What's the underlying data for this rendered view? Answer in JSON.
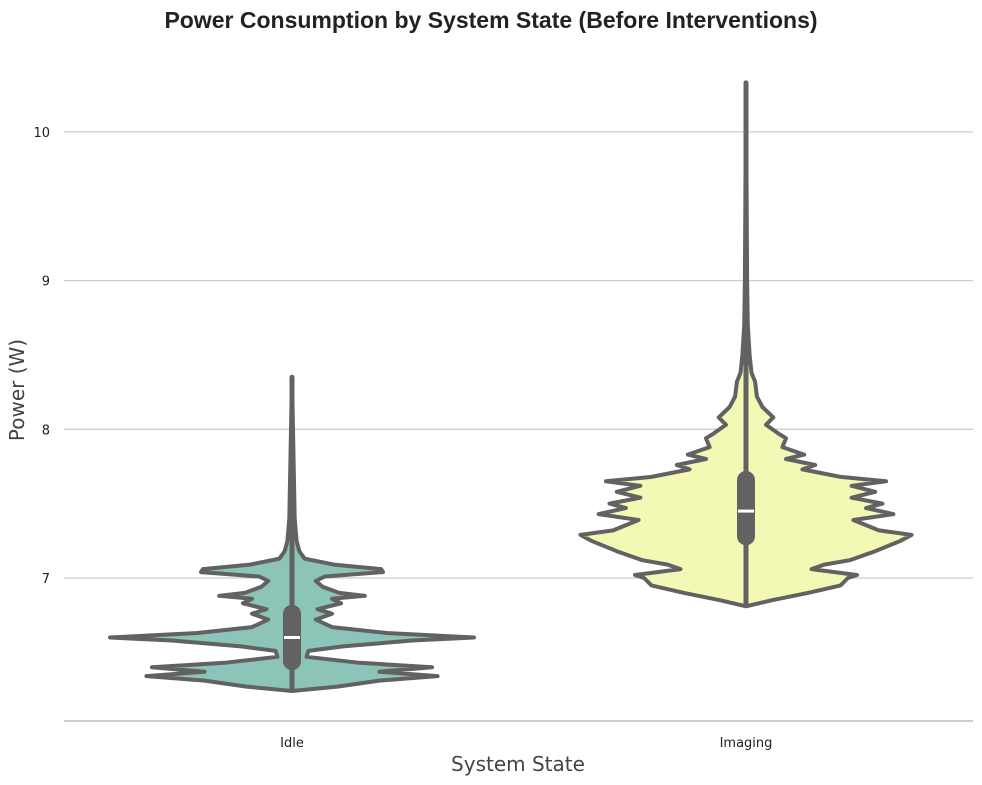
{
  "chart_data": {
    "type": "violin",
    "title": "Power Consumption by System State (Before Interventions)",
    "xlabel": "System State",
    "ylabel": "Power (W)",
    "ylim": [
      6.05,
      10.45
    ],
    "yticks": [
      7,
      8,
      9,
      10
    ],
    "grid": "horizontal",
    "categories": [
      "Idle",
      "Imaging"
    ],
    "colors": {
      "Idle": "#8dc4b8",
      "Imaging": "#f3f8b4",
      "outline": "#626262"
    },
    "series": [
      {
        "category": "Idle",
        "min": 6.25,
        "q1": 6.38,
        "median": 6.6,
        "q3": 6.82,
        "max": 8.35,
        "density_profile": [
          [
            6.24,
            0.0
          ],
          [
            6.27,
            0.25
          ],
          [
            6.31,
            0.48
          ],
          [
            6.34,
            0.8
          ],
          [
            6.37,
            0.48
          ],
          [
            6.4,
            0.77
          ],
          [
            6.43,
            0.37
          ],
          [
            6.47,
            0.08
          ],
          [
            6.51,
            0.09
          ],
          [
            6.54,
            0.28
          ],
          [
            6.58,
            0.66
          ],
          [
            6.6,
            1.0
          ],
          [
            6.63,
            0.52
          ],
          [
            6.67,
            0.22
          ],
          [
            6.72,
            0.13
          ],
          [
            6.76,
            0.22
          ],
          [
            6.79,
            0.14
          ],
          [
            6.83,
            0.27
          ],
          [
            6.86,
            0.22
          ],
          [
            6.88,
            0.4
          ],
          [
            6.9,
            0.26
          ],
          [
            6.94,
            0.17
          ],
          [
            6.98,
            0.13
          ],
          [
            7.01,
            0.18
          ],
          [
            7.04,
            0.5
          ],
          [
            7.06,
            0.49
          ],
          [
            7.09,
            0.23
          ],
          [
            7.13,
            0.07
          ],
          [
            7.18,
            0.04
          ],
          [
            7.25,
            0.025
          ],
          [
            7.4,
            0.015
          ],
          [
            8.35,
            0.0
          ]
        ]
      },
      {
        "category": "Imaging",
        "min": 6.82,
        "q1": 7.22,
        "median": 7.45,
        "q3": 7.72,
        "max": 10.33,
        "density_profile": [
          [
            6.81,
            0.0
          ],
          [
            6.85,
            0.14
          ],
          [
            6.9,
            0.34
          ],
          [
            6.95,
            0.52
          ],
          [
            7.0,
            0.56
          ],
          [
            7.02,
            0.61
          ],
          [
            7.06,
            0.36
          ],
          [
            7.09,
            0.43
          ],
          [
            7.12,
            0.57
          ],
          [
            7.18,
            0.71
          ],
          [
            7.25,
            0.85
          ],
          [
            7.29,
            0.91
          ],
          [
            7.32,
            0.73
          ],
          [
            7.39,
            0.59
          ],
          [
            7.43,
            0.81
          ],
          [
            7.47,
            0.66
          ],
          [
            7.5,
            0.75
          ],
          [
            7.54,
            0.58
          ],
          [
            7.58,
            0.71
          ],
          [
            7.62,
            0.58
          ],
          [
            7.65,
            0.77
          ],
          [
            7.68,
            0.52
          ],
          [
            7.73,
            0.31
          ],
          [
            7.76,
            0.38
          ],
          [
            7.8,
            0.22
          ],
          [
            7.83,
            0.32
          ],
          [
            7.88,
            0.2
          ],
          [
            7.94,
            0.22
          ],
          [
            7.97,
            0.18
          ],
          [
            8.03,
            0.11
          ],
          [
            8.08,
            0.15
          ],
          [
            8.15,
            0.09
          ],
          [
            8.22,
            0.06
          ],
          [
            8.32,
            0.05
          ],
          [
            8.38,
            0.03
          ],
          [
            8.5,
            0.02
          ],
          [
            8.7,
            0.01
          ],
          [
            9.0,
            0.006
          ],
          [
            10.33,
            0.0
          ]
        ]
      }
    ]
  }
}
